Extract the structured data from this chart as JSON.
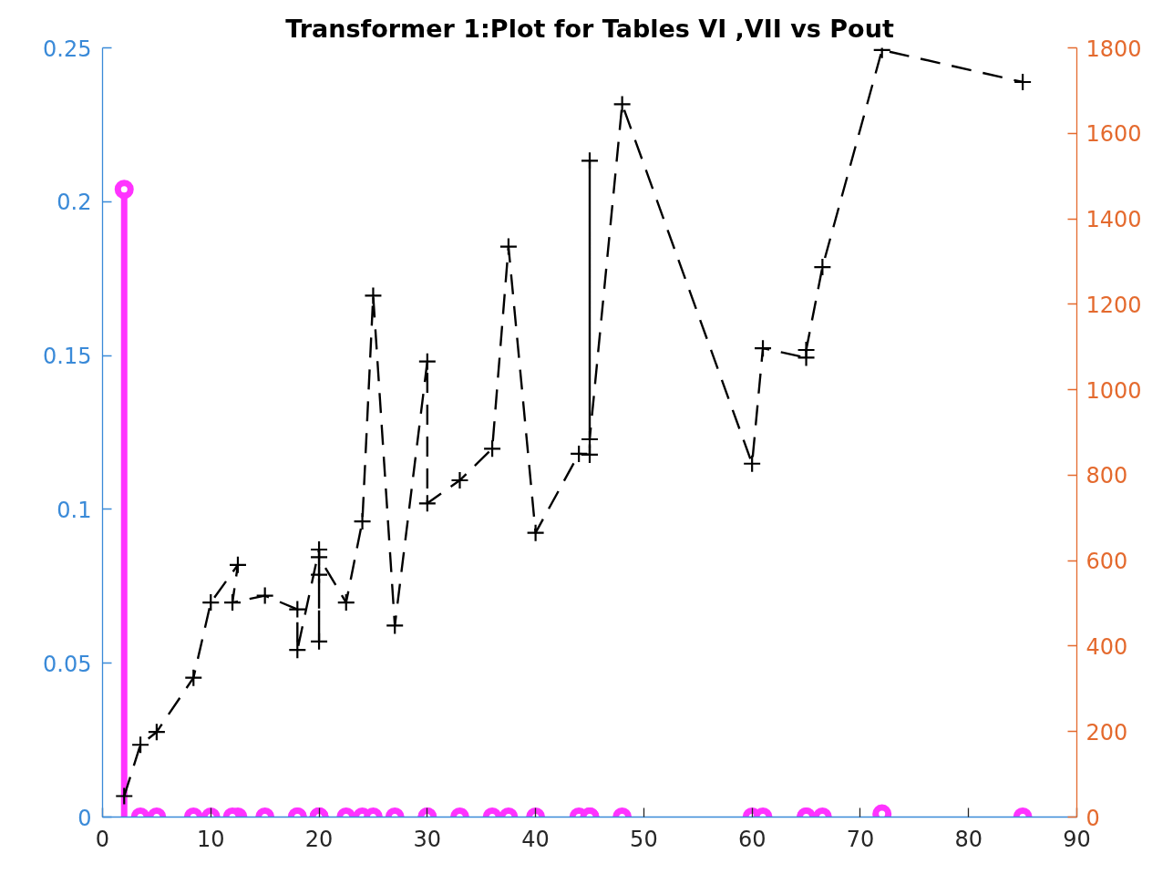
{
  "chart_data": {
    "type": "line",
    "title": "Transformer 1:Plot for Tables VI ,VII vs Pout",
    "xlim": [
      0,
      90
    ],
    "xticks": [
      0,
      10,
      20,
      30,
      40,
      50,
      60,
      70,
      80,
      90
    ],
    "ylim": [
      0,
      0.25
    ],
    "yticks": [
      0,
      0.05,
      0.1,
      0.15,
      0.2,
      0.25
    ],
    "y2lim": [
      0,
      1800
    ],
    "y2ticks": [
      0,
      200,
      400,
      600,
      800,
      1000,
      1200,
      1400,
      1600,
      1800
    ],
    "series": [
      {
        "type": "lollipop",
        "color": "#ff33ff",
        "marker": "circle",
        "x": [
          2,
          3.5,
          5,
          8.4,
          10,
          12.5,
          12,
          15,
          18,
          18,
          20,
          20,
          20,
          20,
          22.5,
          24,
          25,
          27,
          30,
          30,
          33,
          36,
          37.5,
          40,
          44,
          45,
          45,
          45,
          48,
          60,
          61,
          65,
          65,
          66.5,
          72,
          85
        ],
        "values": [
          0.204,
          0,
          0,
          0,
          0,
          0,
          0,
          0,
          0,
          0,
          0,
          0,
          0,
          0,
          0,
          0,
          0,
          0,
          0,
          0,
          0,
          0,
          0,
          0,
          0,
          0,
          0,
          0,
          0,
          0,
          0,
          0,
          0,
          0,
          0.001,
          0
        ]
      },
      {
        "axis": "y2",
        "color": "#000000",
        "marker": "cross",
        "line_style": "dashed",
        "x": [
          2,
          3.5,
          5,
          8.4,
          10,
          12.5,
          12,
          15,
          18,
          18,
          20,
          20,
          20,
          20,
          22.5,
          24,
          25,
          27,
          30,
          30,
          33,
          36,
          37.5,
          40,
          44,
          45,
          45,
          45,
          48,
          60,
          61,
          65,
          65,
          66.5,
          72,
          85
        ],
        "values": [
          49,
          169,
          199,
          326,
          502,
          590,
          502,
          518,
          486,
          391,
          626,
          411,
          567,
          608,
          502,
          692,
          1220,
          448,
          1066,
          734,
          788,
          862,
          1335,
          665,
          850,
          848,
          1536,
          884,
          1668,
          827,
          1097,
          1075,
          1093,
          1287,
          1795,
          1720
        ]
      }
    ]
  }
}
